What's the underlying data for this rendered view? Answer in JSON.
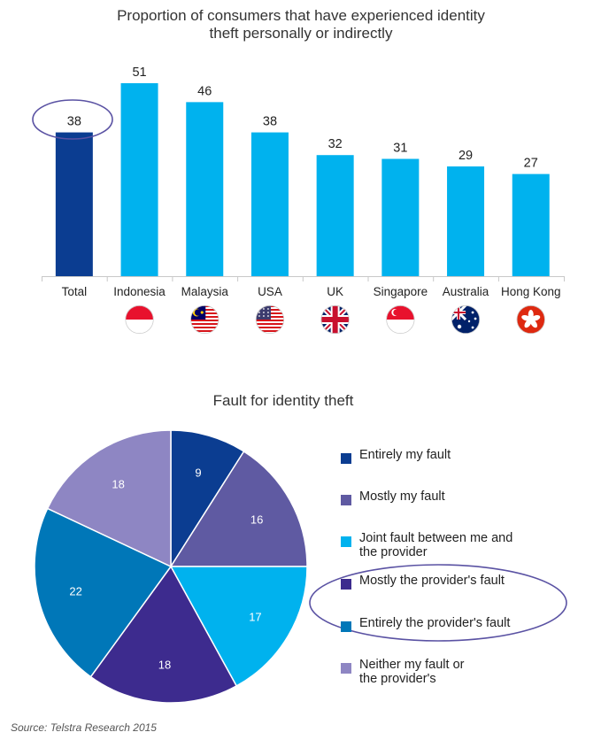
{
  "chart_data": [
    {
      "type": "bar",
      "title": "Proportion of consumers that have experienced identity theft personally or indirectly",
      "title_lines": [
        "Proportion of consumers that have experienced identity",
        "theft personally or indirectly"
      ],
      "categories": [
        "Total",
        "Indonesia",
        "Malaysia",
        "USA",
        "UK",
        "Singapore",
        "Australia",
        "Hong Kong"
      ],
      "values": [
        38,
        51,
        46,
        38,
        32,
        31,
        29,
        27
      ],
      "flags": [
        "",
        "indonesia-flag-icon",
        "malaysia-flag-icon",
        "usa-flag-icon",
        "uk-flag-icon",
        "singapore-flag-icon",
        "australia-flag-icon",
        "hong-kong-flag-icon"
      ],
      "highlighted": "Total",
      "colors": {
        "total": "#0b3d91",
        "country": "#00b2ee"
      },
      "xlabel": "",
      "ylabel": "",
      "ylim": [
        0,
        58
      ]
    },
    {
      "type": "pie",
      "title": "Fault for identity theft",
      "slices": [
        {
          "label": "Entirely my fault",
          "value": 9,
          "color": "#0b3d91"
        },
        {
          "label": "Mostly my fault",
          "value": 16,
          "color": "#5f5aa2"
        },
        {
          "label": "Joint fault between me and\nthe provider",
          "value": 17,
          "color": "#00b2ee"
        },
        {
          "label": "Mostly the provider's fault",
          "value": 18,
          "color": "#3d2b8e"
        },
        {
          "label": "Entirely the provider's fault",
          "value": 22,
          "color": "#0077b8"
        },
        {
          "label": "Neither my fault or\nthe provider's",
          "value": 18,
          "color": "#8e86c3"
        }
      ],
      "highlighted_legend": [
        "Mostly the provider's fault",
        "Entirely the provider's fault"
      ]
    }
  ],
  "source": "Source: Telstra Research 2015"
}
